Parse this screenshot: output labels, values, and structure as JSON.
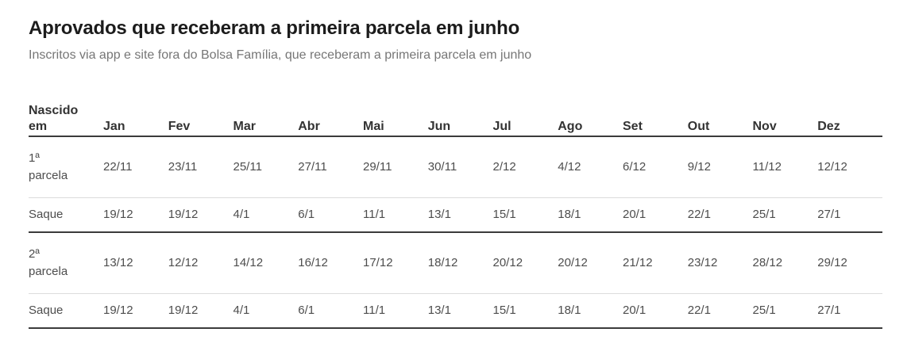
{
  "header": {
    "title": "Aprovados que receberam a primeira parcela em junho",
    "subtitle": "Inscritos via app e site fora do Bolsa Família, que receberam a primeira parcela em junho"
  },
  "chart_data": {
    "type": "table",
    "title": "Aprovados que receberam a primeira parcela em junho",
    "subtitle": "Inscritos via app e site fora do Bolsa Família, que receberam a primeira parcela em junho",
    "corner_label": "Nascido em",
    "columns": [
      "Jan",
      "Fev",
      "Mar",
      "Abr",
      "Mai",
      "Jun",
      "Jul",
      "Ago",
      "Set",
      "Out",
      "Nov",
      "Dez"
    ],
    "rows": [
      {
        "label": "1ª parcela",
        "values": [
          "22/11",
          "23/11",
          "25/11",
          "27/11",
          "29/11",
          "30/11",
          "2/12",
          "4/12",
          "6/12",
          "9/12",
          "11/12",
          "12/12"
        ],
        "divider_below": "light"
      },
      {
        "label": "Saque",
        "values": [
          "19/12",
          "19/12",
          "4/1",
          "6/1",
          "11/1",
          "13/1",
          "15/1",
          "18/1",
          "20/1",
          "22/1",
          "25/1",
          "27/1"
        ],
        "divider_below": "dark"
      },
      {
        "label": "2ª parcela",
        "values": [
          "13/12",
          "12/12",
          "14/12",
          "16/12",
          "17/12",
          "18/12",
          "20/12",
          "20/12",
          "21/12",
          "23/12",
          "28/12",
          "29/12"
        ],
        "divider_below": "light"
      },
      {
        "label": "Saque",
        "values": [
          "19/12",
          "19/12",
          "4/1",
          "6/1",
          "11/1",
          "13/1",
          "15/1",
          "18/1",
          "20/1",
          "22/1",
          "25/1",
          "27/1"
        ],
        "divider_below": "dark"
      }
    ]
  },
  "colors": {
    "background": "#ffffff",
    "title_text": "#1c1c1c",
    "subtitle_text": "#767676",
    "header_text": "#333333",
    "cell_text": "#4d4d4d",
    "divider_dark": "#3b3b3b",
    "divider_light": "#dcdcdc"
  }
}
